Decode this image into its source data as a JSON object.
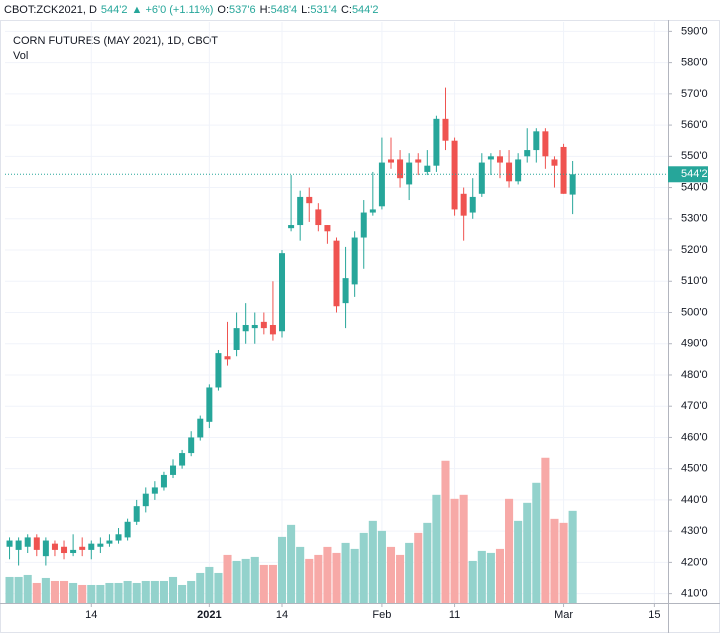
{
  "chart_data": {
    "type": "candlestick",
    "header": {
      "symbol": "CBOT:ZCK2021, D",
      "last": "544'2",
      "change": "▲ +6'0 (+1.11%)",
      "ohlc": [
        {
          "label": "O:",
          "value": "537'6"
        },
        {
          "label": "H:",
          "value": "548'4"
        },
        {
          "label": "L:",
          "value": "531'4"
        },
        {
          "label": "C:",
          "value": "544'2"
        }
      ]
    },
    "title": "CORN FUTURES (MAY 2021), 1D, CBOT",
    "volume_label": "Vol",
    "up_color": "#26a69a",
    "down_color": "#ef5350",
    "volume_up_color": "#93d2cc",
    "volume_down_color": "#f7a9a7",
    "open": [
      425,
      424,
      425,
      428,
      422,
      426,
      425,
      423,
      425,
      424,
      425,
      426,
      427,
      428,
      433,
      438,
      442,
      444,
      448,
      451,
      455,
      460,
      465,
      476,
      486,
      488,
      494,
      495,
      497,
      496,
      494,
      527,
      528,
      537,
      533,
      528,
      523,
      503,
      509,
      524,
      532,
      534,
      549,
      549,
      541,
      549,
      545,
      547,
      562,
      555,
      538,
      532,
      538,
      549,
      550,
      548,
      542,
      550,
      552,
      558,
      549,
      553,
      537.75
    ],
    "high": [
      428,
      428,
      429,
      429,
      428,
      427,
      427,
      429,
      428,
      427,
      428,
      429,
      431,
      434,
      440,
      444,
      446,
      449,
      453,
      456,
      462,
      467,
      477,
      488,
      497,
      500,
      503,
      500,
      500,
      510,
      520,
      544,
      539,
      540,
      535,
      528,
      524,
      521,
      526,
      536,
      545,
      556,
      556,
      552,
      551,
      551,
      552,
      563,
      572,
      556,
      540,
      543,
      551,
      551,
      552,
      552,
      551,
      559,
      559,
      559,
      550,
      554,
      548.5
    ],
    "low": [
      421,
      419,
      423,
      422,
      419,
      422,
      421,
      422,
      422,
      421,
      423,
      425,
      426,
      427,
      432,
      436,
      440,
      443,
      447,
      450,
      454,
      459,
      463,
      475,
      483,
      486,
      490,
      490,
      493,
      491,
      492,
      526,
      523,
      529,
      526,
      522,
      500,
      495,
      505,
      514,
      531,
      533,
      546,
      540,
      536,
      544,
      544,
      545,
      552,
      531,
      523,
      530,
      537,
      544,
      543,
      540,
      541,
      548,
      548,
      546,
      540,
      538,
      531.5
    ],
    "close": [
      427,
      427,
      428,
      424,
      427,
      424,
      423,
      424,
      424,
      426,
      426,
      427,
      429,
      433,
      438,
      442,
      444,
      448,
      451,
      455,
      460,
      466,
      476,
      487,
      485,
      495,
      496,
      496,
      495,
      493,
      519,
      528,
      537,
      535,
      528,
      526,
      502,
      511,
      524,
      532,
      533,
      548,
      548,
      543,
      548,
      548,
      547,
      562,
      555,
      533,
      531,
      537,
      548,
      550,
      548,
      542,
      549,
      552,
      558,
      550,
      547,
      538,
      544.25
    ],
    "volume": [
      26,
      26,
      28,
      20,
      25,
      22,
      22,
      20,
      18,
      18,
      18,
      20,
      20,
      22,
      20,
      22,
      22,
      22,
      26,
      18,
      22,
      30,
      36,
      30,
      48,
      42,
      44,
      46,
      38,
      38,
      66,
      78,
      56,
      44,
      48,
      56,
      50,
      60,
      54,
      70,
      82,
      72,
      56,
      48,
      60,
      70,
      80,
      108,
      142,
      104,
      108,
      42,
      52,
      50,
      54,
      104,
      82,
      100,
      120,
      145,
      84,
      80,
      92
    ],
    "vlim": [
      0,
      200
    ],
    "last_price": {
      "value": 544.25,
      "label": "544'2"
    },
    "ylim": [
      407,
      593
    ],
    "yticks": [
      {
        "value": 410,
        "label": "410'0"
      },
      {
        "value": 420,
        "label": "420'0"
      },
      {
        "value": 430,
        "label": "430'0"
      },
      {
        "value": 440,
        "label": "440'0"
      },
      {
        "value": 450,
        "label": "450'0"
      },
      {
        "value": 460,
        "label": "460'0"
      },
      {
        "value": 470,
        "label": "470'0"
      },
      {
        "value": 480,
        "label": "480'0"
      },
      {
        "value": 490,
        "label": "490'0"
      },
      {
        "value": 500,
        "label": "500'0"
      },
      {
        "value": 510,
        "label": "510'0"
      },
      {
        "value": 520,
        "label": "520'0"
      },
      {
        "value": 530,
        "label": "530'0"
      },
      {
        "value": 540,
        "label": "540'0"
      },
      {
        "value": 550,
        "label": "550'0"
      },
      {
        "value": 560,
        "label": "560'0"
      },
      {
        "value": 570,
        "label": "570'0"
      },
      {
        "value": 580,
        "label": "580'0"
      },
      {
        "value": 590,
        "label": "590'0"
      }
    ],
    "xlim": [
      -0.5,
      72.5
    ],
    "xticks": [
      {
        "value": 9,
        "label": "14"
      },
      {
        "value": 22,
        "label": "2021"
      },
      {
        "value": 30,
        "label": "14"
      },
      {
        "value": 41,
        "label": "Feb"
      },
      {
        "value": 49,
        "label": "11"
      },
      {
        "value": 61,
        "label": "Mar"
      },
      {
        "value": 71,
        "label": "15"
      }
    ],
    "grid": true
  }
}
